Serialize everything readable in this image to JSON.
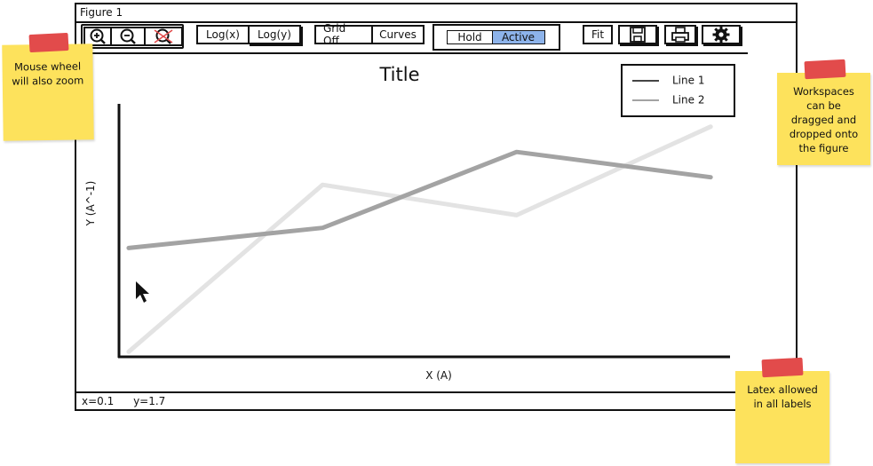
{
  "window": {
    "title": "Figure 1"
  },
  "toolbar": {
    "zoom_in_icon": "zoom-in-icon",
    "zoom_out_icon": "zoom-out-icon",
    "zoom_reset_icon": "zoom-reset-icon",
    "log_x_label": "Log(x)",
    "log_y_label": "Log(y)",
    "grid_label": "Grid Off",
    "curves_label": "Curves",
    "hold_label": "Hold",
    "active_label": "Active",
    "fit_label": "Fit",
    "save_icon": "save-icon",
    "print_icon": "print-icon",
    "settings_icon": "gear-icon"
  },
  "chart_data": {
    "type": "line",
    "title": "Title",
    "xlabel": "X (A)",
    "ylabel": "Y (A^-1)",
    "x": [
      0,
      1,
      2,
      3
    ],
    "series": [
      {
        "name": "Line 1",
        "values": [
          1.15,
          1.55,
          3.05,
          2.55
        ],
        "color": "#a3a3a3"
      },
      {
        "name": "Line 2",
        "values": [
          -0.9,
          2.4,
          1.8,
          3.55
        ],
        "color": "#e3e3e3"
      }
    ],
    "xlim": [
      -0.05,
      3.1
    ],
    "ylim": [
      -1,
      4
    ],
    "legend_position": "top-right",
    "grid": false
  },
  "status": {
    "x_readout": "x=0.1",
    "y_readout": "y=1.7"
  },
  "notes": [
    {
      "text": "Mouse wheel will also zoom"
    },
    {
      "text": "Workspaces can be dragged and dropped onto the figure"
    },
    {
      "text": "Latex allowed in all labels"
    }
  ],
  "colors": {
    "active": "#8db3ea",
    "sticky": "#fde25c",
    "tape": "#e24b4b"
  }
}
